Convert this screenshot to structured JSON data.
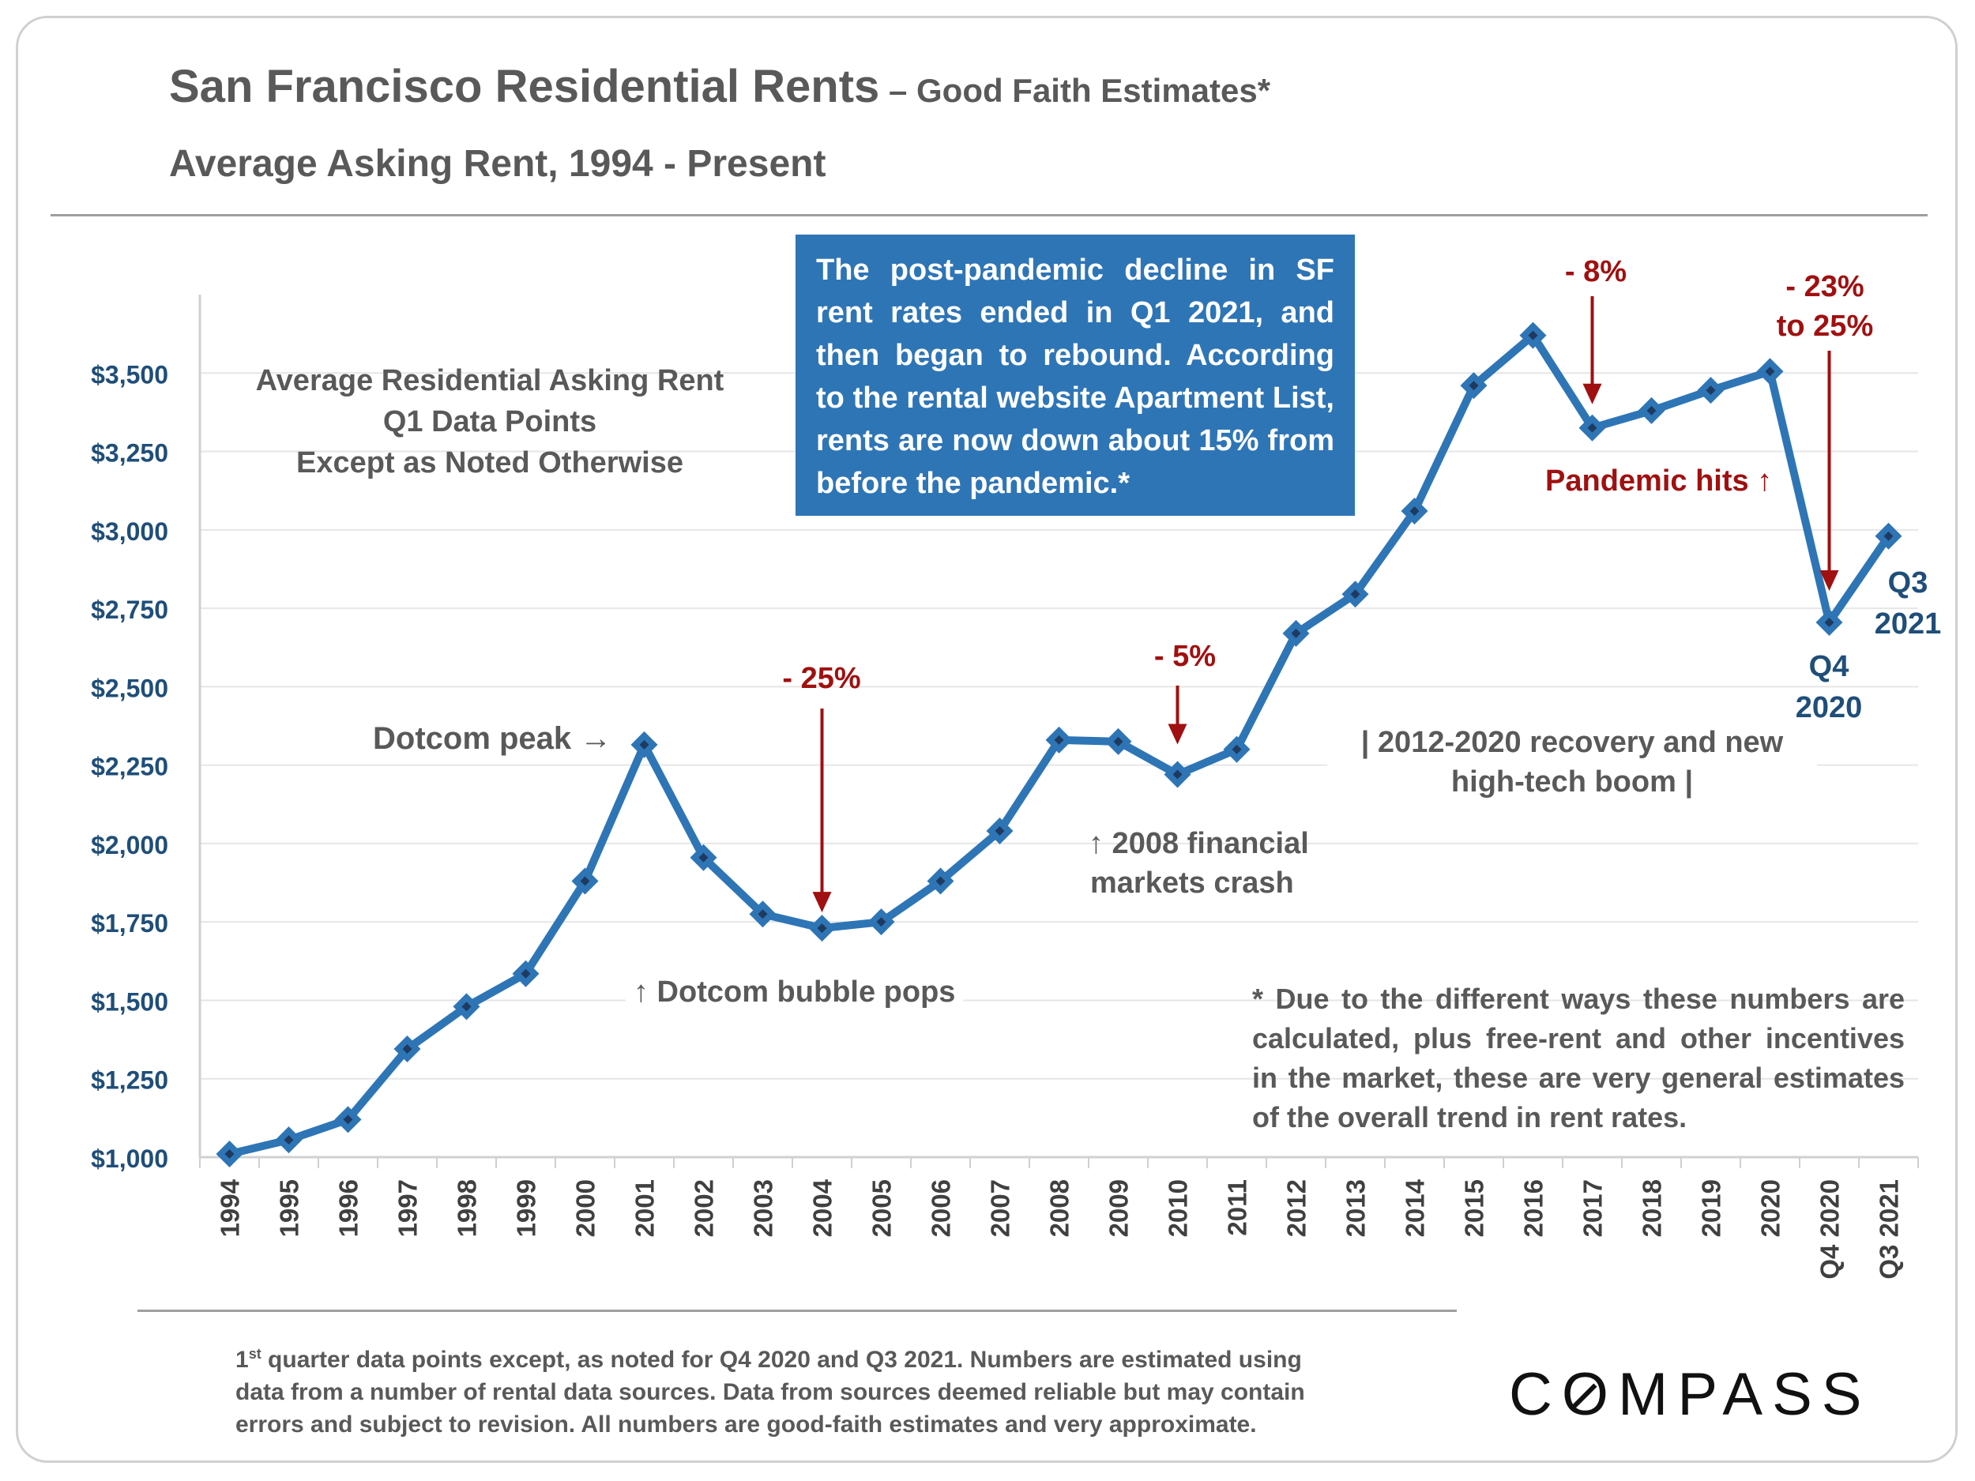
{
  "title": {
    "main": "San Francisco Residential Rents",
    "sub": " – Good Faith Estimates*",
    "subtitle": "Average Asking Rent, 1994 - Present"
  },
  "callout": "The post-pandemic decline in SF rent rates ended in Q1 2021, and then began to rebound. According to the rental website Apartment List, rents are now down about 15% from before the pandemic.*",
  "legend_note": {
    "line1": "Average Residential Asking Rent",
    "line2": "Q1 Data Points",
    "line3": "Except as Noted Otherwise"
  },
  "annotations": {
    "dotcom_peak": "Dotcom peak →",
    "dotcom_pops": "↑ Dotcom bubble pops",
    "drop_2004": "- 25%",
    "drop_2010": "- 5%",
    "crash_line1": "↑ 2008 financial",
    "crash_line2": "markets crash",
    "recovery_line1": "| 2012-2020 recovery and new",
    "recovery_line2": "high-tech boom |",
    "drop_2017": "- 8%",
    "pandemic": "Pandemic hits ↑",
    "drop_2020_line1": "- 23%",
    "drop_2020_line2": "to 25%",
    "q4_line1": "Q4",
    "q4_line2": "2020",
    "q3_line1": "Q3",
    "q3_line2": "2021"
  },
  "footnote": "* Due to the different ways these numbers are calculated, plus free-rent and other incentives in the market, these are very general estimates of the overall trend in rent rates.",
  "bottom_note": {
    "sup_prefix": "1",
    "sup": "st",
    "text": " quarter data points except, as noted for Q4 2020 and Q3 2021. Numbers are estimated using data from a number of rental data sources. Data from sources deemed reliable but may contain errors and subject to revision. All numbers are good-faith estimates and very approximate."
  },
  "logo": {
    "before": "C",
    "o": "O",
    "after": "MPASS"
  },
  "colors": {
    "line": "#2e75b6",
    "marker_center": "#1f3a5f",
    "axis_text": "#1f4e79",
    "annotation_red": "#a01010",
    "grid": "#e6e6e6"
  },
  "chart_data": {
    "type": "line",
    "title": "San Francisco Residential Rents – Good Faith Estimates*",
    "subtitle": "Average Asking Rent, 1994 - Present",
    "xlabel": "",
    "ylabel": "",
    "ylim": [
      1000,
      3750
    ],
    "yticks": [
      1000,
      1250,
      1500,
      1750,
      2000,
      2250,
      2500,
      2750,
      3000,
      3250,
      3500
    ],
    "ytick_labels": [
      "$1,000",
      "$1,250",
      "$1,500",
      "$1,750",
      "$2,000",
      "$2,250",
      "$2,500",
      "$2,750",
      "$3,000",
      "$3,250",
      "$3,500"
    ],
    "grid": true,
    "categories": [
      "1994",
      "1995",
      "1996",
      "1997",
      "1998",
      "1999",
      "2000",
      "2001",
      "2002",
      "2003",
      "2004",
      "2005",
      "2006",
      "2007",
      "2008",
      "2009",
      "2010",
      "2011",
      "2012",
      "2013",
      "2014",
      "2015",
      "2016",
      "2017",
      "2018",
      "2019",
      "2020",
      "Q4 2020",
      "Q3 2021"
    ],
    "series": [
      {
        "name": "Average Residential Asking Rent",
        "values": [
          1010,
          1055,
          1120,
          1345,
          1480,
          1585,
          1880,
          2315,
          1955,
          1775,
          1730,
          1750,
          1880,
          2040,
          2330,
          2325,
          2220,
          2300,
          2670,
          2795,
          3060,
          3460,
          3620,
          3325,
          3380,
          3445,
          3505,
          2705,
          2980
        ]
      }
    ]
  }
}
